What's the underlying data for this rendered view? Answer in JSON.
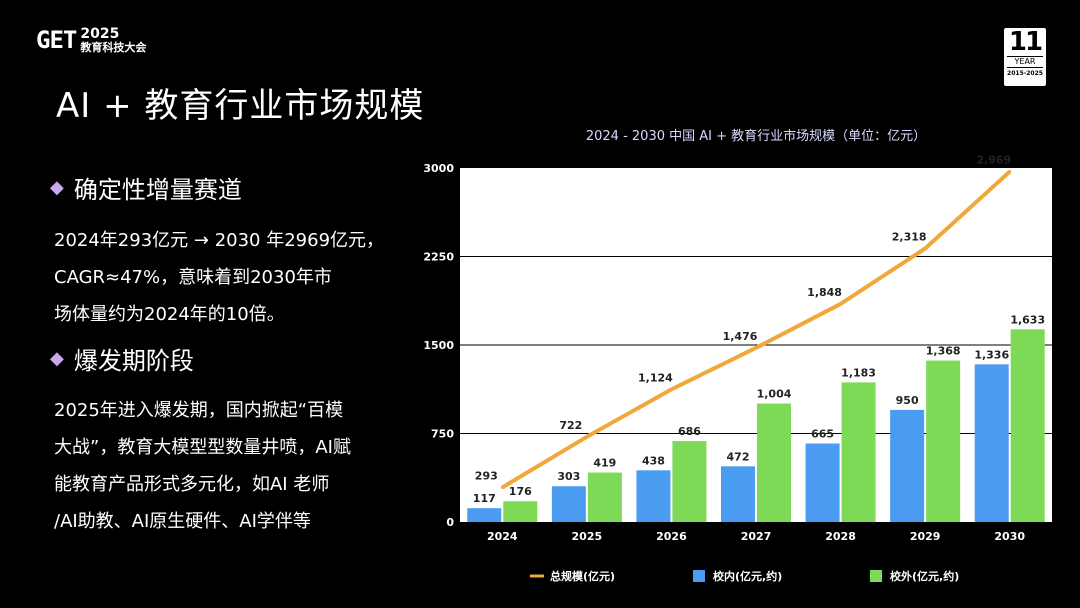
{
  "header": {
    "logo_mark": "GET",
    "logo_year": "2025",
    "logo_subtitle": "教育科技大会",
    "badge_number": "11",
    "badge_label": "YEAR",
    "badge_range": "2015-2025"
  },
  "page_title": "AI + 教育行业市场规模",
  "sections": [
    {
      "title": "确定性增量赛道",
      "lines": [
        "2024年293亿元 → 2030 年2969亿元，",
        "CAGR≈47%，意味着到2030年市",
        "场体量约为2024年的10倍。"
      ]
    },
    {
      "title": "爆发期阶段",
      "lines": [
        "2025年进入爆发期，国内掀起“百模",
        "大战”，教育大模型型数量井喷，AI赋",
        "能教育产品形式多元化，如AI 老师",
        "/AI助教、AI原生硬件、AI学伴等"
      ]
    }
  ],
  "colors": {
    "accent_diamond": "#c9a8ec",
    "line_total": "#f0a83a",
    "bar_in_school": "#4a9cf0",
    "bar_out_school": "#7ed957"
  },
  "chart_data": {
    "type": "bar",
    "title": "2024 - 2030 中国 AI + 教育行业市场规模（单位：亿元）",
    "categories": [
      "2024",
      "2025",
      "2026",
      "2027",
      "2028",
      "2029",
      "2030"
    ],
    "series": [
      {
        "name": "校内(亿元,约)",
        "kind": "bar",
        "values": [
          117,
          303,
          438,
          472,
          665,
          950,
          1336
        ],
        "labels": [
          "117",
          "303",
          "438",
          "472",
          "665",
          "950",
          "1,336"
        ]
      },
      {
        "name": "校外(亿元,约)",
        "kind": "bar",
        "values": [
          176,
          419,
          686,
          1004,
          1183,
          1368,
          1633
        ],
        "labels": [
          "176",
          "419",
          "686",
          "1,004",
          "1,183",
          "1,368",
          "1,633"
        ]
      },
      {
        "name": "总规模(亿元)",
        "kind": "line",
        "values": [
          293,
          722,
          1124,
          1476,
          1848,
          2318,
          2969
        ],
        "labels": [
          "293",
          "722",
          "1,124",
          "1,476",
          "1,848",
          "2,318",
          "2,969"
        ]
      }
    ],
    "yticks": [
      "0",
      "750",
      "1500",
      "2250",
      "3000"
    ],
    "ylim": [
      0,
      3000
    ],
    "grid": true,
    "legend_position": "bottom"
  }
}
